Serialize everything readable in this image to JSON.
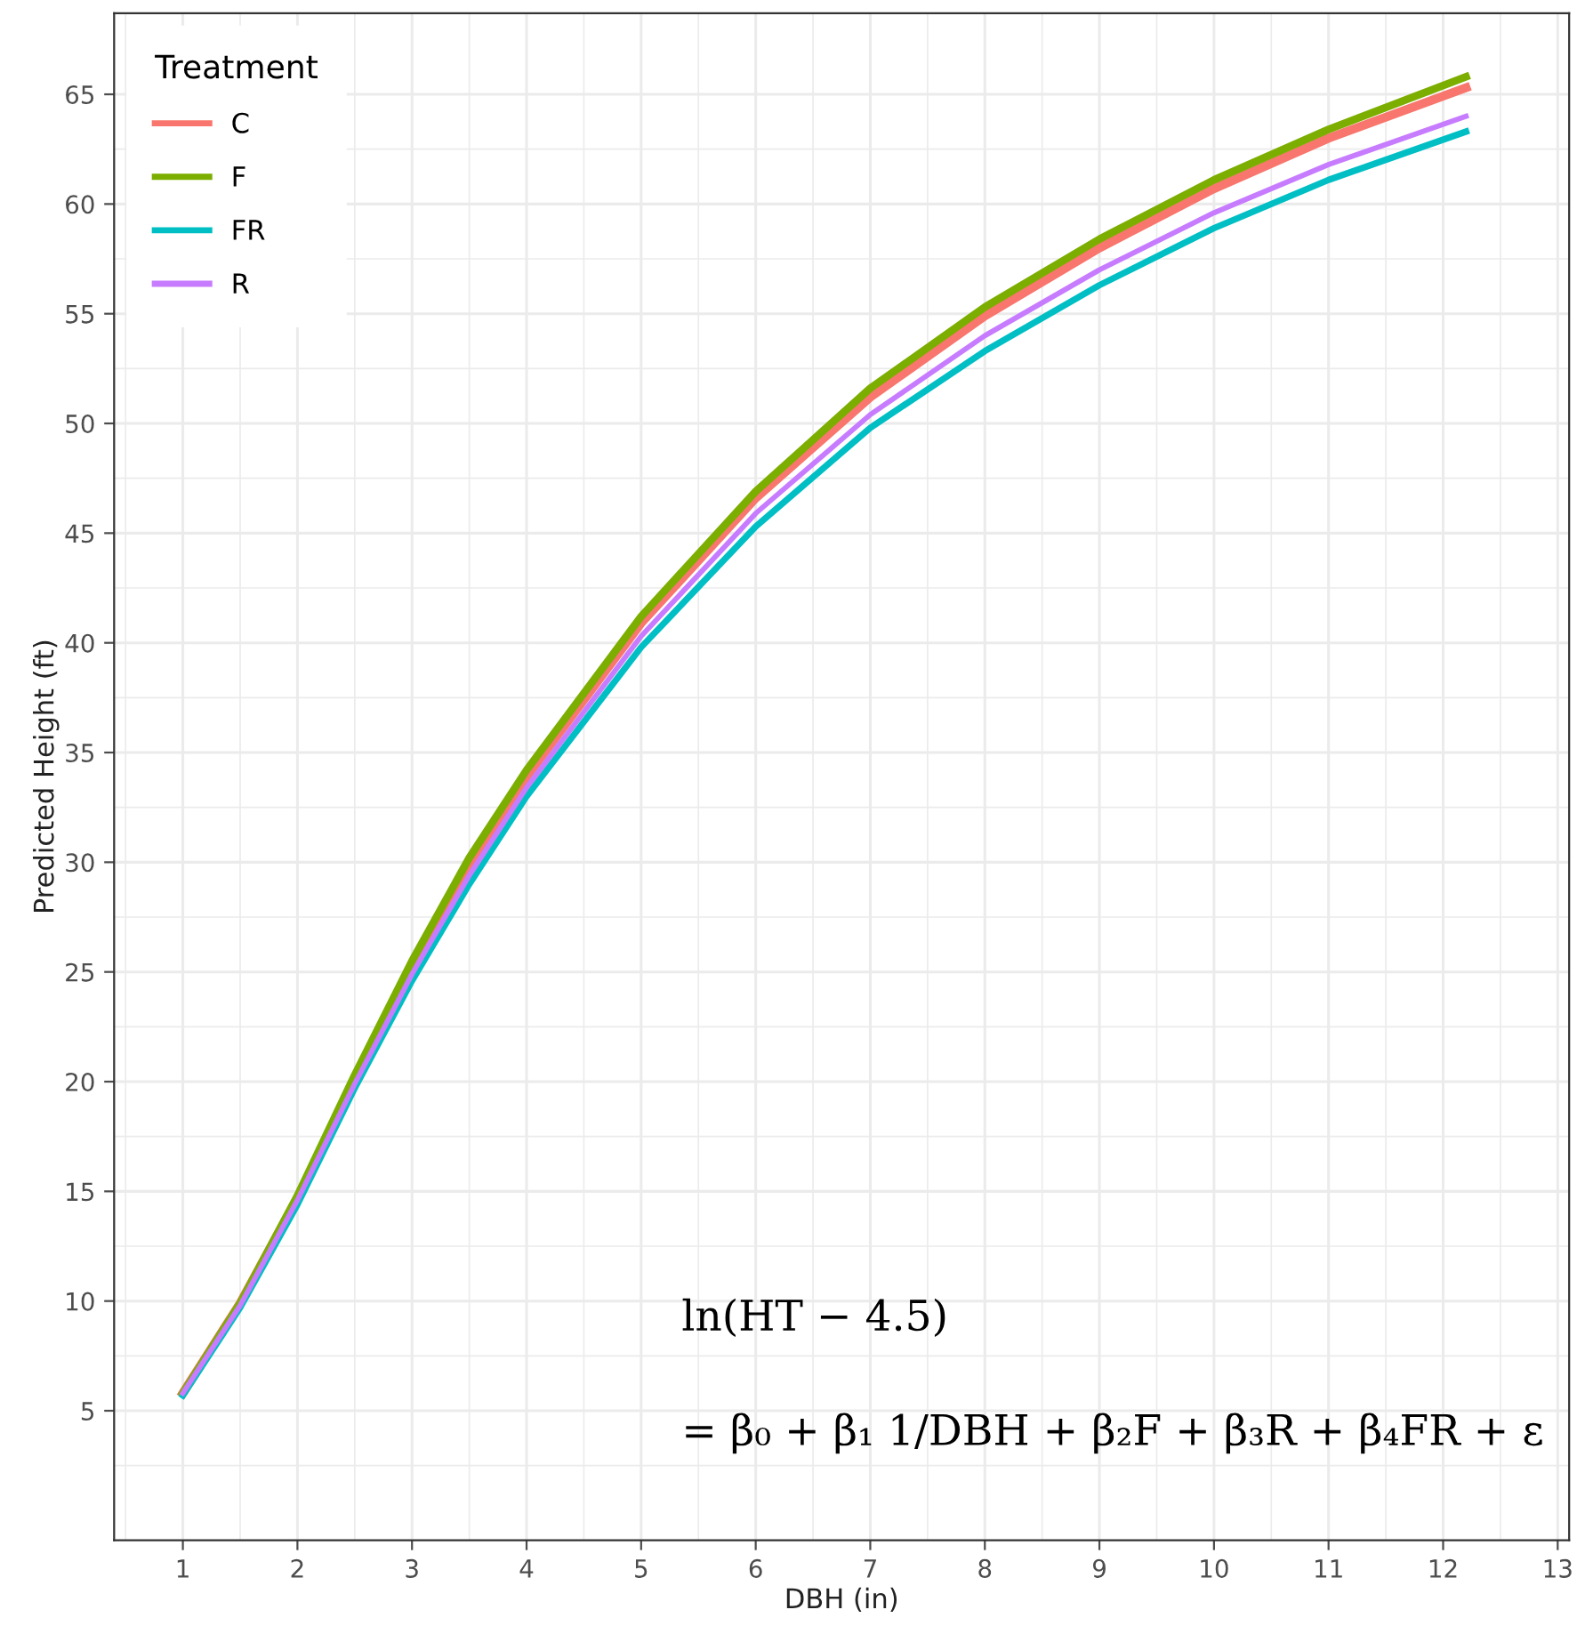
{
  "chart_data": {
    "type": "line",
    "xlabel": "DBH (in)",
    "ylabel": "Predicted Height (ft)",
    "legend_title": "Treatment",
    "x": [
      1,
      1.5,
      2,
      2.5,
      3,
      3.5,
      4,
      5,
      6,
      7,
      8,
      9,
      10,
      11,
      12.2
    ],
    "series": [
      {
        "name": "C",
        "color": "#f8766d",
        "values": [
          5.8,
          9.9,
          14.7,
          20.1,
          25.2,
          29.9,
          33.9,
          40.9,
          46.6,
          51.2,
          54.9,
          58.0,
          60.7,
          63.0,
          65.3
        ]
      },
      {
        "name": "F",
        "color": "#7cae00",
        "values": [
          5.8,
          9.9,
          14.8,
          20.3,
          25.5,
          30.2,
          34.2,
          41.2,
          46.9,
          51.6,
          55.3,
          58.4,
          61.1,
          63.4,
          65.8
        ]
      },
      {
        "name": "FR",
        "color": "#00bfc4",
        "values": [
          5.7,
          9.7,
          14.4,
          19.7,
          24.6,
          29.0,
          33.0,
          39.8,
          45.3,
          49.8,
          53.3,
          56.3,
          58.9,
          61.1,
          63.3
        ]
      },
      {
        "name": "R",
        "color": "#c77cff",
        "values": [
          5.8,
          9.8,
          14.6,
          19.9,
          24.9,
          29.4,
          33.4,
          40.3,
          45.9,
          50.4,
          54.0,
          57.0,
          59.6,
          61.8,
          64.0
        ]
      }
    ],
    "xlim": [
      0.4,
      13.1
    ],
    "xticks": [
      1,
      2,
      3,
      4,
      5,
      6,
      7,
      8,
      9,
      10,
      11,
      12,
      13
    ],
    "ylim": [
      -0.9,
      68.7
    ],
    "yticks": [
      5,
      10,
      15,
      20,
      25,
      30,
      35,
      40,
      45,
      50,
      55,
      60,
      65
    ],
    "grid": true,
    "legend": "top left",
    "marker": "none",
    "line_style": "solid",
    "annotations": [
      "ln(HT − 4.5)",
      "= β₀ + β₁ 1/DBH + β₂F + β₃R + β₄FR + ε"
    ]
  }
}
